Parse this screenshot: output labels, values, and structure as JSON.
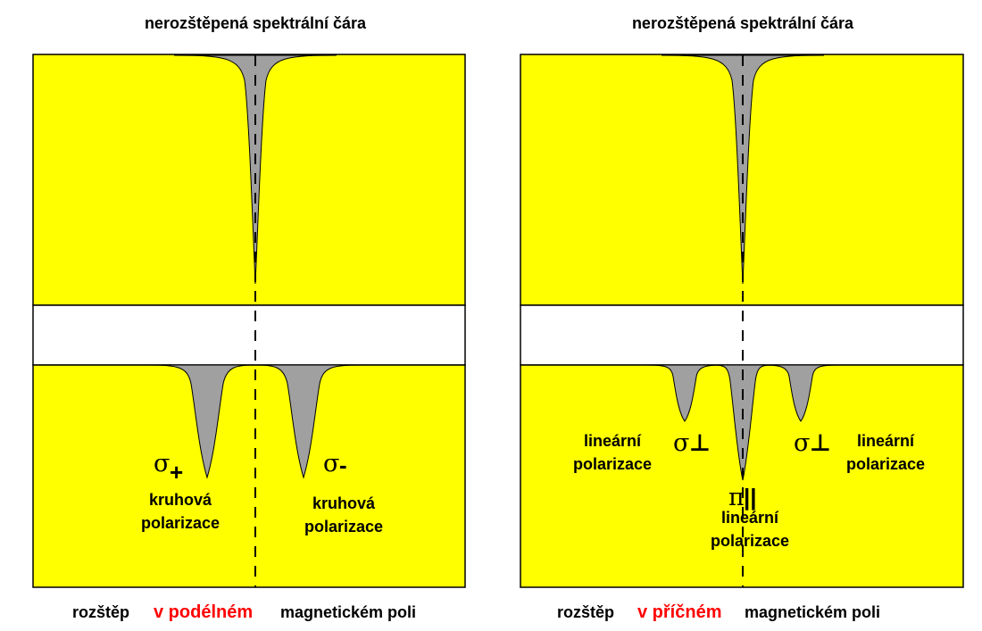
{
  "left_panel": {
    "title": "nerozštěpená spektrální čára",
    "sigma_plus": {
      "symbol": "σ",
      "sign": "+"
    },
    "sigma_minus": {
      "symbol": "σ",
      "sign": "-"
    },
    "label_left": [
      "kruhová",
      "polarizace"
    ],
    "label_right": [
      "kruhová",
      "polarizace"
    ],
    "caption": {
      "pre": "rozštěp",
      "highlight": "v podélném",
      "post": "magnetickém poli"
    }
  },
  "right_panel": {
    "title": "nerozštěpená spektrální čára",
    "sigma_left": {
      "symbol": "σ",
      "mark": "⊥"
    },
    "sigma_right": {
      "symbol": "σ",
      "mark": "⊥"
    },
    "pi": {
      "symbol": "π",
      "mark": "||"
    },
    "label_left": [
      "lineární",
      "polarizace"
    ],
    "label_right": [
      "lineární",
      "polarizace"
    ],
    "label_center": [
      "lineární",
      "polarizace"
    ],
    "caption": {
      "pre": "rozštěp",
      "highlight": "v příčném",
      "post": "magnetickém poli"
    }
  },
  "colors": {
    "panel": "#ffff00",
    "line": "#a0a0a0",
    "highlight": "#ff0000",
    "gap": "#ffffff"
  }
}
